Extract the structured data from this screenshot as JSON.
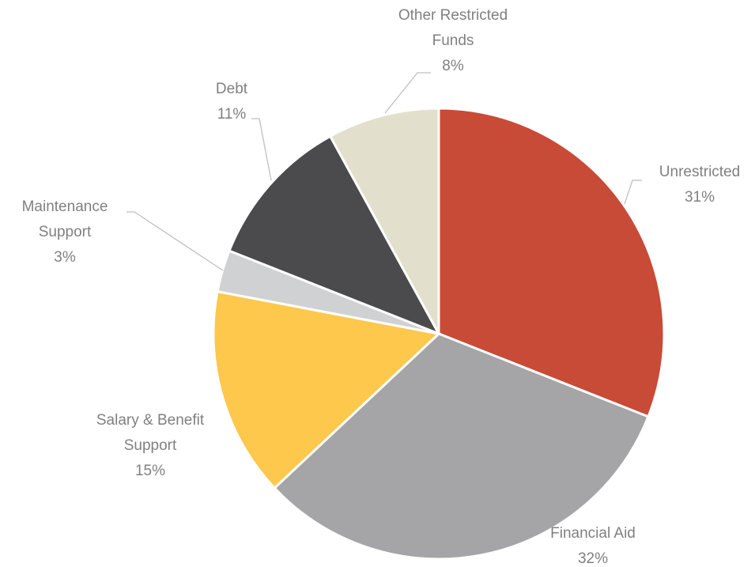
{
  "chart_data": {
    "type": "pie",
    "categories": [
      "Unrestricted",
      "Financial Aid",
      "Salary & Benefit Support",
      "Maintenance Support",
      "Debt",
      "Other Restricted Funds"
    ],
    "values": [
      31,
      32,
      15,
      3,
      11,
      8
    ],
    "value_labels": [
      "31%",
      "32%",
      "15%",
      "3%",
      "11%",
      "8%"
    ],
    "colors": [
      "#c84b37",
      "#a5a5a7",
      "#fdc84b",
      "#d0d1d3",
      "#4b4b4d",
      "#e2dfcc"
    ]
  }
}
